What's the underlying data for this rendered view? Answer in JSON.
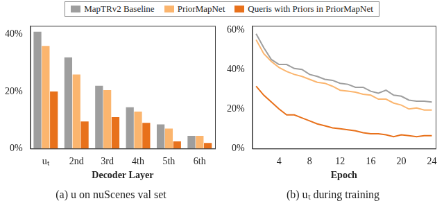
{
  "chart_data": [
    {
      "type": "bar",
      "title": "(a) u on nuScenes val set",
      "xlabel": "Decoder Layer",
      "categories": [
        "uₜ",
        "2nd",
        "3rd",
        "4th",
        "5th",
        "6th"
      ],
      "series": [
        {
          "name": "MapTRv2 Baseline",
          "color": "#9e9e9e",
          "values": [
            41,
            32,
            22,
            14.5,
            8.5,
            4.5
          ]
        },
        {
          "name": "PriorMapNet",
          "color": "#fbb56e",
          "values": [
            36,
            26,
            20.5,
            13,
            7,
            4.5
          ]
        },
        {
          "name": "Queris with Priors in PriorMapNet",
          "color": "#e8711b",
          "values": [
            20,
            9.5,
            11,
            9,
            2.5,
            2
          ]
        }
      ],
      "ylim": [
        0,
        43
      ],
      "yticks": [
        {
          "value": 0,
          "label": "0%"
        },
        {
          "value": 20,
          "label": "20%"
        },
        {
          "value": 40,
          "label": "40%"
        }
      ],
      "grid": false,
      "legend": "top"
    },
    {
      "type": "line",
      "title": "(b) uₜ during training",
      "xlabel": "Epoch",
      "x": [
        1,
        2,
        3,
        4,
        5,
        6,
        7,
        8,
        9,
        10,
        11,
        12,
        13,
        14,
        15,
        16,
        17,
        18,
        19,
        20,
        21,
        22,
        23,
        24
      ],
      "series": [
        {
          "name": "MapTRv2 Baseline",
          "color": "#9e9e9e",
          "values": [
            58,
            51,
            45,
            42.5,
            42.5,
            40.5,
            40,
            37.5,
            36.5,
            35,
            34.5,
            33,
            32.5,
            31,
            31,
            29,
            28,
            29.5,
            27,
            26.5,
            24.5,
            24,
            24,
            23.5
          ]
        },
        {
          "name": "PriorMapNet",
          "color": "#fbb56e",
          "values": [
            55,
            48,
            44,
            41,
            39,
            37.5,
            36.5,
            35,
            33.5,
            33,
            31.5,
            29.5,
            29,
            28.5,
            27.5,
            27,
            25,
            25,
            23,
            22,
            20,
            20.5,
            19.5,
            19.5
          ]
        },
        {
          "name": "Queris with Priors in PriorMapNet",
          "color": "#e8711b",
          "values": [
            31.5,
            27,
            23.5,
            20,
            17,
            17,
            15.5,
            14,
            12.5,
            11.5,
            10.5,
            10,
            9.5,
            9,
            8,
            7.5,
            7.5,
            7,
            6,
            7,
            6.5,
            6,
            6.5,
            6.5
          ]
        }
      ],
      "xlim": [
        0.5,
        24.5
      ],
      "xticks": [
        4,
        8,
        12,
        16,
        20,
        24
      ],
      "ylim": [
        0,
        62
      ],
      "yticks": [
        {
          "value": 0,
          "label": "0%"
        },
        {
          "value": 20,
          "label": "20%"
        },
        {
          "value": 40,
          "label": "40%"
        },
        {
          "value": 60,
          "label": "60%"
        }
      ],
      "grid": false
    }
  ]
}
